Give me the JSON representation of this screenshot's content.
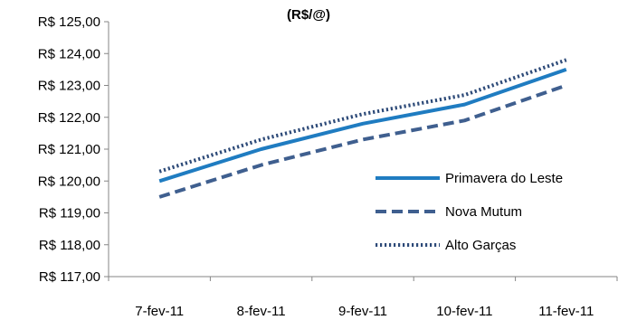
{
  "chart_data": {
    "type": "line",
    "title": "(R$/@)",
    "categories": [
      "7-fev-11",
      "8-fev-11",
      "9-fev-11",
      "10-fev-11",
      "11-fev-11"
    ],
    "y_ticks": [
      "R$ 117,00",
      "R$ 118,00",
      "R$ 119,00",
      "R$ 120,00",
      "R$ 121,00",
      "R$ 122,00",
      "R$ 123,00",
      "R$ 124,00",
      "R$ 125,00"
    ],
    "ylim": [
      117,
      125
    ],
    "grid": false,
    "legend_position": "right",
    "series": [
      {
        "name": "Primavera do Leste",
        "values": [
          120.0,
          121.0,
          121.8,
          122.4,
          123.5
        ],
        "color": "#1f7cc1",
        "style": "solid"
      },
      {
        "name": "Nova Mutum",
        "values": [
          119.5,
          120.5,
          121.3,
          121.9,
          123.0
        ],
        "color": "#3f5f8f",
        "style": "dashed"
      },
      {
        "name": "Alto Garças",
        "values": [
          120.3,
          121.3,
          122.1,
          122.7,
          123.8
        ],
        "color": "#2d4a78",
        "style": "dotted"
      }
    ]
  }
}
